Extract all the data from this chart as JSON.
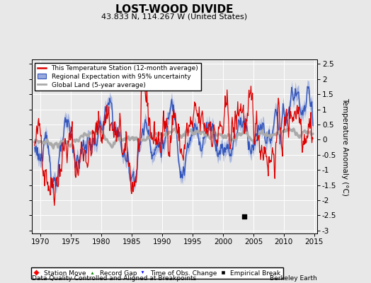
{
  "title": "LOST-WOOD DIVIDE",
  "subtitle": "43.833 N, 114.267 W (United States)",
  "xlabel_bottom": "Data Quality Controlled and Aligned at Breakpoints",
  "xlabel_right": "Berkeley Earth",
  "ylabel": "Temperature Anomaly (°C)",
  "xlim": [
    1968.5,
    2015.5
  ],
  "ylim": [
    -3.1,
    2.65
  ],
  "yticks": [
    -3,
    -2.5,
    -2,
    -1.5,
    -1,
    -0.5,
    0,
    0.5,
    1,
    1.5,
    2,
    2.5
  ],
  "xticks": [
    1970,
    1975,
    1980,
    1985,
    1990,
    1995,
    2000,
    2005,
    2010,
    2015
  ],
  "empirical_break_x": 2003.5,
  "empirical_break_y": -2.55,
  "background_color": "#e8e8e8",
  "plot_bg_color": "#e8e8e8",
  "station_color": "#dd0000",
  "regional_color": "#3355bb",
  "regional_fill_color": "#99aadd",
  "global_color": "#aaaaaa",
  "seed": 42
}
